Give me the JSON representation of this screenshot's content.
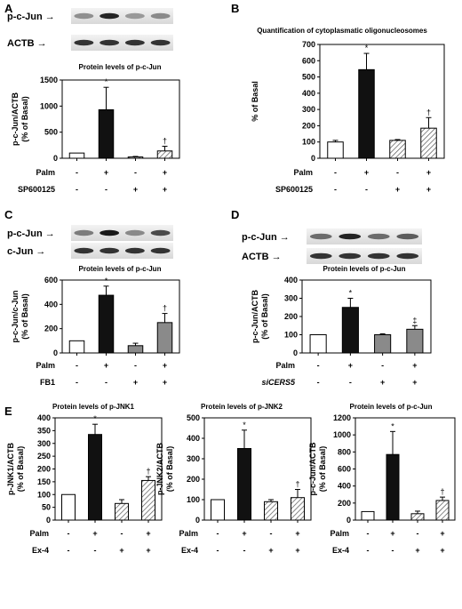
{
  "colors": {
    "white_bar": "#ffffff",
    "black_bar": "#111111",
    "grey_bar": "#8a8a8a",
    "hatch": "#555555"
  },
  "panels": [
    {
      "id": "A",
      "label": "A",
      "blot_rows": [
        "p-c-Jun",
        "ACTB"
      ],
      "chart_title": "Protein levels of p-c-Jun",
      "ylabel": [
        "p-c-Jun/ACTB",
        "(% of Basal)"
      ],
      "conditions": [
        {
          "name": "Palm",
          "signs": [
            "-",
            "+",
            "-",
            "+"
          ]
        },
        {
          "name": "SP600125",
          "signs": [
            "-",
            "-",
            "+",
            "+"
          ]
        }
      ]
    },
    {
      "id": "B",
      "label": "B",
      "blot_rows": [],
      "chart_title": "Quantification of cytoplasmatic oligonucleosomes",
      "ylabel": [
        "% of Basal"
      ],
      "conditions": [
        {
          "name": "Palm",
          "signs": [
            "-",
            "+",
            "-",
            "+"
          ]
        },
        {
          "name": "SP600125",
          "signs": [
            "-",
            "-",
            "+",
            "+"
          ]
        }
      ]
    },
    {
      "id": "C",
      "label": "C",
      "blot_rows": [
        "p-c-Jun",
        "c-Jun"
      ],
      "chart_title": "Protein levels of p-c-Jun",
      "ylabel": [
        "p-c-Jun/c-Jun",
        "(% of Basal)"
      ],
      "conditions": [
        {
          "name": "Palm",
          "signs": [
            "-",
            "+",
            "-",
            "+"
          ]
        },
        {
          "name": "FB1",
          "signs": [
            "-",
            "-",
            "+",
            "+"
          ]
        }
      ]
    },
    {
      "id": "D",
      "label": "D",
      "blot_rows": [
        "p-c-Jun",
        "ACTB"
      ],
      "chart_title": "Protein levels of p-c-Jun",
      "ylabel": [
        "p-c-Jun/ACTB",
        "(% of Basal)"
      ],
      "conditions": [
        {
          "name": "Palm",
          "signs": [
            "-",
            "+",
            "-",
            "+"
          ]
        },
        {
          "name": "siCERS5",
          "signs": [
            "-",
            "-",
            "+",
            "+"
          ]
        }
      ]
    },
    {
      "id": "E1",
      "label": "E",
      "blot_rows": [],
      "chart_title": "Protein levels of p-JNK1",
      "ylabel": [
        "p-JNK1/ACTB",
        "(% of Basal)"
      ],
      "conditions": [
        {
          "name": "Palm",
          "signs": [
            "-",
            "+",
            "-",
            "+"
          ]
        },
        {
          "name": "Ex-4",
          "signs": [
            "-",
            "-",
            "+",
            "+"
          ]
        }
      ]
    },
    {
      "id": "E2",
      "label": "",
      "blot_rows": [],
      "chart_title": "Protein levels of p-JNK2",
      "ylabel": [
        "p-JNK2/ACTB",
        "(% of Basal)"
      ],
      "conditions": [
        {
          "name": "Palm",
          "signs": [
            "-",
            "+",
            "-",
            "+"
          ]
        },
        {
          "name": "Ex-4",
          "signs": [
            "-",
            "-",
            "+",
            "+"
          ]
        }
      ]
    },
    {
      "id": "E3",
      "label": "",
      "blot_rows": [],
      "chart_title": "Protein levels of p-c-Jun",
      "ylabel": [
        "p-c-Jun/ACTB",
        "(% of Basal)"
      ],
      "conditions": [
        {
          "name": "Palm",
          "signs": [
            "-",
            "+",
            "-",
            "+"
          ]
        },
        {
          "name": "Ex-4",
          "signs": [
            "-",
            "-",
            "+",
            "+"
          ]
        }
      ]
    }
  ],
  "chart_data": [
    {
      "panel": "A",
      "type": "bar",
      "title": "Protein levels of p-c-Jun",
      "ylabel": "p-c-Jun/ACTB (% of Basal)",
      "ylim": [
        0,
        1500
      ],
      "yticks": [
        0,
        500,
        1000,
        1500
      ],
      "values": [
        100,
        930,
        25,
        140
      ],
      "errors": [
        0,
        430,
        10,
        90
      ],
      "fills": [
        "white",
        "black",
        "hatch",
        "hatch"
      ],
      "markers": [
        "",
        "*",
        "",
        "†"
      ]
    },
    {
      "panel": "B",
      "type": "bar",
      "title": "Quantification of cytoplasmatic oligonucleosomes",
      "ylabel": "% of Basal",
      "ylim": [
        0,
        700
      ],
      "yticks": [
        0,
        100,
        200,
        300,
        400,
        500,
        600,
        700
      ],
      "values": [
        100,
        545,
        110,
        185
      ],
      "errors": [
        10,
        100,
        5,
        65
      ],
      "fills": [
        "white",
        "black",
        "hatch",
        "hatch"
      ],
      "markers": [
        "",
        "*",
        "",
        "†"
      ]
    },
    {
      "panel": "C",
      "type": "bar",
      "title": "Protein levels of p-c-Jun",
      "ylabel": "p-c-Jun/c-Jun (% of Basal)",
      "ylim": [
        0,
        600
      ],
      "yticks": [
        0,
        200,
        400,
        600
      ],
      "values": [
        100,
        475,
        60,
        250
      ],
      "errors": [
        0,
        75,
        20,
        75
      ],
      "fills": [
        "white",
        "black",
        "grey",
        "grey"
      ],
      "markers": [
        "",
        "*",
        "",
        "†"
      ]
    },
    {
      "panel": "D",
      "type": "bar",
      "title": "Protein levels of p-c-Jun",
      "ylabel": "p-c-Jun/ACTB (% of Basal)",
      "ylim": [
        0,
        400
      ],
      "yticks": [
        0,
        100,
        200,
        300,
        400
      ],
      "values": [
        100,
        250,
        100,
        130
      ],
      "errors": [
        0,
        50,
        5,
        20
      ],
      "fills": [
        "white",
        "black",
        "grey",
        "grey"
      ],
      "markers": [
        "",
        "*",
        "",
        "‡"
      ]
    },
    {
      "panel": "E1",
      "type": "bar",
      "title": "Protein levels of p-JNK1",
      "ylabel": "p-JNK1/ACTB (% of Basal)",
      "ylim": [
        0,
        400
      ],
      "yticks": [
        0,
        50,
        100,
        150,
        200,
        250,
        300,
        350,
        400
      ],
      "values": [
        100,
        335,
        65,
        155
      ],
      "errors": [
        0,
        40,
        15,
        15
      ],
      "fills": [
        "white",
        "black",
        "hatch",
        "hatch"
      ],
      "markers": [
        "",
        "*",
        "",
        "†"
      ]
    },
    {
      "panel": "E2",
      "type": "bar",
      "title": "Protein levels of p-JNK2",
      "ylabel": "p-JNK2/ACTB (% of Basal)",
      "ylim": [
        0,
        500
      ],
      "yticks": [
        0,
        100,
        200,
        300,
        400,
        500
      ],
      "values": [
        100,
        350,
        90,
        110
      ],
      "errors": [
        0,
        90,
        10,
        40
      ],
      "fills": [
        "white",
        "black",
        "hatch",
        "hatch"
      ],
      "markers": [
        "",
        "*",
        "",
        "†"
      ]
    },
    {
      "panel": "E3",
      "type": "bar",
      "title": "Protein levels of p-c-Jun",
      "ylabel": "p-c-Jun/ACTB (% of Basal)",
      "ylim": [
        0,
        1200
      ],
      "yticks": [
        0,
        200,
        400,
        600,
        800,
        1000,
        1200
      ],
      "values": [
        100,
        770,
        75,
        230
      ],
      "errors": [
        0,
        270,
        30,
        40
      ],
      "fills": [
        "white",
        "black",
        "hatch",
        "hatch"
      ],
      "markers": [
        "",
        "*",
        "",
        "†"
      ]
    }
  ]
}
